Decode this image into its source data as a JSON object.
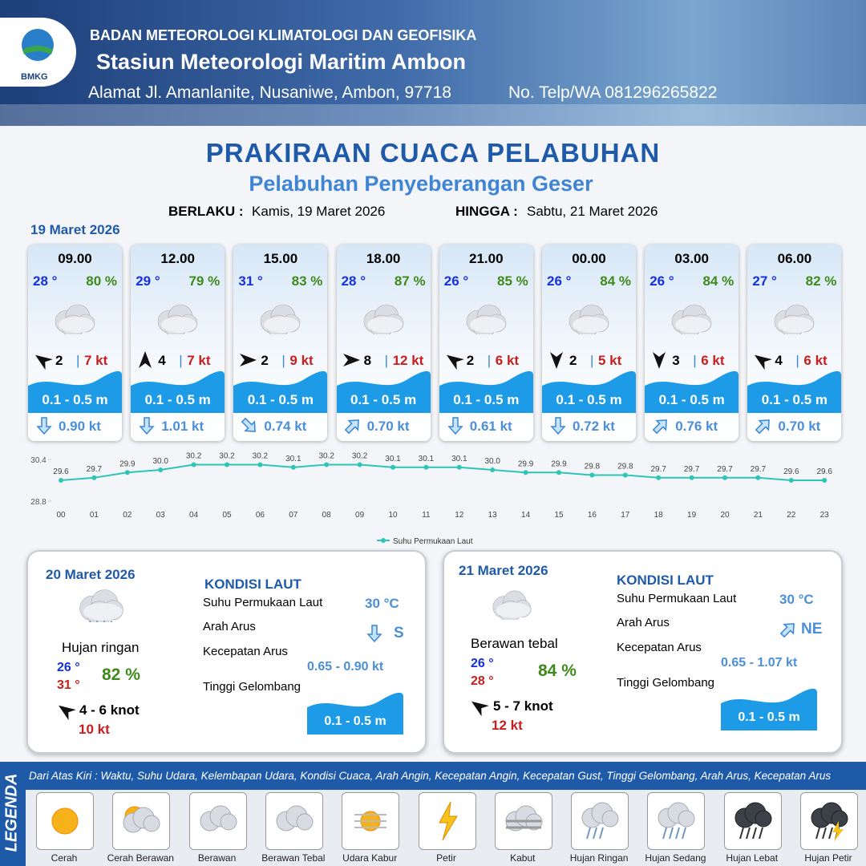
{
  "header": {
    "org": "BADAN METEOROLOGI KLIMATOLOGI DAN GEOFISIKA",
    "station": "Stasiun Meteorologi Maritim Ambon",
    "address": "Alamat Jl. Amanlanite, Nusaniwe, Ambon, 97718",
    "phone": "No. Telp/WA  081296265822",
    "logo": "BMKG"
  },
  "title": "PRAKIRAAN CUACA PELABUHAN",
  "subtitle": "Pelabuhan Penyeberangan Geser",
  "validity": {
    "from_label": "BERLAKU :",
    "from": "Kamis, 19 Maret 2026",
    "to_label": "HINGGA :",
    "to": "Sabtu, 21 Maret 2026"
  },
  "day1": {
    "date": "19 Maret 2026",
    "separator": "|",
    "cards": [
      {
        "time": "09.00",
        "temp": "28 °",
        "humidity": "80 %",
        "wind": "2",
        "gust": "7 kt",
        "wave": "0.1 - 0.5 m",
        "current": "0.90 kt"
      },
      {
        "time": "12.00",
        "temp": "29 °",
        "humidity": "79 %",
        "wind": "4",
        "gust": "7 kt",
        "wave": "0.1 - 0.5 m",
        "current": "1.01 kt"
      },
      {
        "time": "15.00",
        "temp": "31 °",
        "humidity": "83 %",
        "wind": "2",
        "gust": "9 kt",
        "wave": "0.1 - 0.5 m",
        "current": "0.74 kt"
      },
      {
        "time": "18.00",
        "temp": "28 °",
        "humidity": "87 %",
        "wind": "8",
        "gust": "12 kt",
        "wave": "0.1 - 0.5 m",
        "current": "0.70 kt"
      },
      {
        "time": "21.00",
        "temp": "26 °",
        "humidity": "85 %",
        "wind": "2",
        "gust": "6 kt",
        "wave": "0.1 - 0.5 m",
        "current": "0.61 kt"
      },
      {
        "time": "00.00",
        "temp": "26 °",
        "humidity": "84 %",
        "wind": "2",
        "gust": "5 kt",
        "wave": "0.1 - 0.5 m",
        "current": "0.72 kt"
      },
      {
        "time": "03.00",
        "temp": "26 °",
        "humidity": "84 %",
        "wind": "3",
        "gust": "6 kt",
        "wave": "0.1 - 0.5 m",
        "current": "0.76 kt"
      },
      {
        "time": "06.00",
        "temp": "27 °",
        "humidity": "82 %",
        "wind": "4",
        "gust": "6 kt",
        "wave": "0.1 - 0.5 m",
        "current": "0.70 kt"
      }
    ]
  },
  "chart_data": {
    "type": "line",
    "categories": [
      "00",
      "01",
      "02",
      "03",
      "04",
      "05",
      "06",
      "07",
      "08",
      "09",
      "10",
      "11",
      "12",
      "13",
      "14",
      "15",
      "16",
      "17",
      "18",
      "19",
      "20",
      "21",
      "22",
      "23"
    ],
    "series": [
      {
        "name": "Suhu Permukaan Laut",
        "color": "#2ec4b6",
        "values": [
          29.6,
          29.7,
          29.9,
          30.0,
          30.2,
          30.2,
          30.2,
          30.1,
          30.2,
          30.2,
          30.1,
          30.1,
          30.1,
          30.0,
          29.9,
          29.9,
          29.8,
          29.8,
          29.7,
          29.7,
          29.7,
          29.7,
          29.6,
          29.6
        ],
        "value_labels": [
          "29.6",
          "29.7",
          "29.9",
          "30.0",
          "30.2",
          "30.2",
          "30.2",
          "30.1",
          "30.2",
          "30.2",
          "30.1",
          "30.1",
          "30.1",
          "30.0",
          "29.9",
          "29.9",
          "29.8",
          "29.8",
          "29.7",
          "29.7",
          "29.7",
          "29.7",
          "29.6",
          "29.6"
        ]
      }
    ],
    "ylim": [
      28.8,
      30.4
    ],
    "yticks": [
      28.8,
      30.4
    ],
    "legend": "bottom"
  },
  "sea_title": "KONDISI LAUT",
  "sea_labels": [
    "Suhu Permukaan Laut",
    "Arah Arus",
    "Kecepatan Arus",
    "Tinggi Gelombang"
  ],
  "days": [
    {
      "date": "20 Maret 2026",
      "condition": "Hujan ringan",
      "temp_min": "26 °",
      "temp_max": "31 °",
      "humidity": "82 %",
      "wind": "4  - 6 knot",
      "gust": "10 kt",
      "sst": "30 °C",
      "direction": "S",
      "speed": "0.65 - 0.90 kt",
      "wave": "0.1 - 0.5 m"
    },
    {
      "date": "21 Maret 2026",
      "condition": "Berawan tebal",
      "temp_min": "26 °",
      "temp_max": "28 °",
      "humidity": "84 %",
      "wind": "5 - 7 knot",
      "gust": "12 kt",
      "sst": "30 °C",
      "direction": "NE",
      "speed": "0.65 - 1.07 kt",
      "wave": "0.1 - 0.5 m"
    }
  ],
  "legend": {
    "title": "LEGENDA",
    "description": "Dari Atas Kiri : Waktu, Suhu Udara, Kelembapan Udara, Kondisi Cuaca, Arah Angin, Kecepatan Angin, Kecepatan Gust, Tinggi Gelombang, Arah Arus, Kecepatan Arus",
    "items": [
      "Cerah",
      "Cerah Berawan",
      "Berawan",
      "Berawan Tebal",
      "Udara Kabur",
      "Petir",
      "Kabut",
      "Hujan Ringan",
      "Hujan Sedang",
      "Hujan Lebat",
      "Hujan Petir"
    ]
  }
}
